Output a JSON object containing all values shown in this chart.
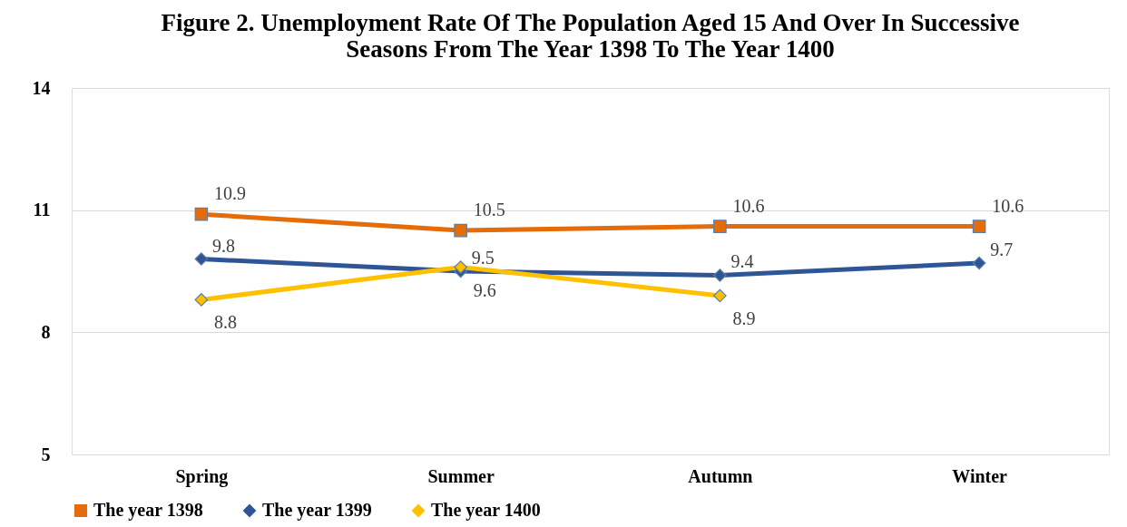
{
  "chart_data": {
    "type": "line",
    "title": "Figure 2. Unemployment Rate Of The Population Aged 15 And Over In Successive Seasons From The Year 1398 To The Year 1400",
    "categories": [
      "Spring",
      "Summer",
      "Autumn",
      "Winter"
    ],
    "series": [
      {
        "name": "The year 1398",
        "color": "#e46c0a",
        "marker": "square",
        "values": [
          10.9,
          10.5,
          10.6,
          10.6
        ]
      },
      {
        "name": "The year 1399",
        "color": "#2f5597",
        "marker": "diamond",
        "values": [
          9.8,
          9.5,
          9.4,
          9.7
        ]
      },
      {
        "name": "The year 1400",
        "color": "#ffc000",
        "marker": "diamond",
        "values": [
          8.8,
          9.6,
          8.9,
          null
        ]
      }
    ],
    "ylim": [
      5,
      14
    ],
    "yticks": [
      5,
      8,
      11,
      14
    ],
    "grid": "y",
    "legend": "bottom",
    "data_labels": true,
    "line_style": "solid"
  }
}
